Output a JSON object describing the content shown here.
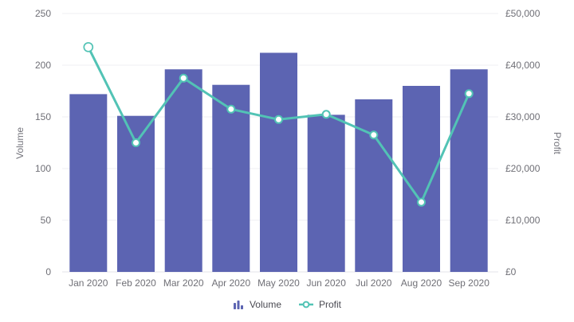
{
  "chart_data": {
    "type": "bar",
    "subtype": "combo-bar-line",
    "title": "",
    "categories": [
      "Jan 2020",
      "Feb 2020",
      "Mar 2020",
      "Apr 2020",
      "May 2020",
      "Jun 2020",
      "Jul 2020",
      "Aug 2020",
      "Sep 2020"
    ],
    "series": [
      {
        "name": "Volume",
        "type": "bar",
        "axis": "left",
        "color": "#5c64b2",
        "values": [
          172,
          151,
          196,
          181,
          212,
          152,
          167,
          180,
          196
        ]
      },
      {
        "name": "Profit",
        "type": "line",
        "axis": "right",
        "color": "#52c3b5",
        "marker": "circle-white-fill",
        "values": [
          43500,
          25000,
          37500,
          31500,
          29500,
          30500,
          26500,
          13500,
          34500
        ]
      }
    ],
    "y_left": {
      "label": "Volume",
      "min": 0,
      "max": 250,
      "tick_values": [
        0,
        50,
        100,
        150,
        200,
        250
      ],
      "ticks": [
        "0",
        "50",
        "100",
        "150",
        "200",
        "250"
      ]
    },
    "y_right": {
      "label": "Profit",
      "min": 0,
      "max": 50000,
      "tick_values": [
        0,
        10000,
        20000,
        30000,
        40000,
        50000
      ],
      "ticks": [
        "£0",
        "£10,000",
        "£20,000",
        "£30,000",
        "£40,000",
        "£50,000"
      ]
    },
    "grid": "horizontal-only",
    "grid_color": "#efeff3",
    "axis_line_color": "#e3e3e8",
    "legend": {
      "position": "bottom",
      "items": [
        {
          "label": "Volume",
          "icon": "bar-chart-icon",
          "color": "#5c64b2"
        },
        {
          "label": "Profit",
          "icon": "line-point-icon",
          "color": "#52c3b5"
        }
      ]
    }
  }
}
